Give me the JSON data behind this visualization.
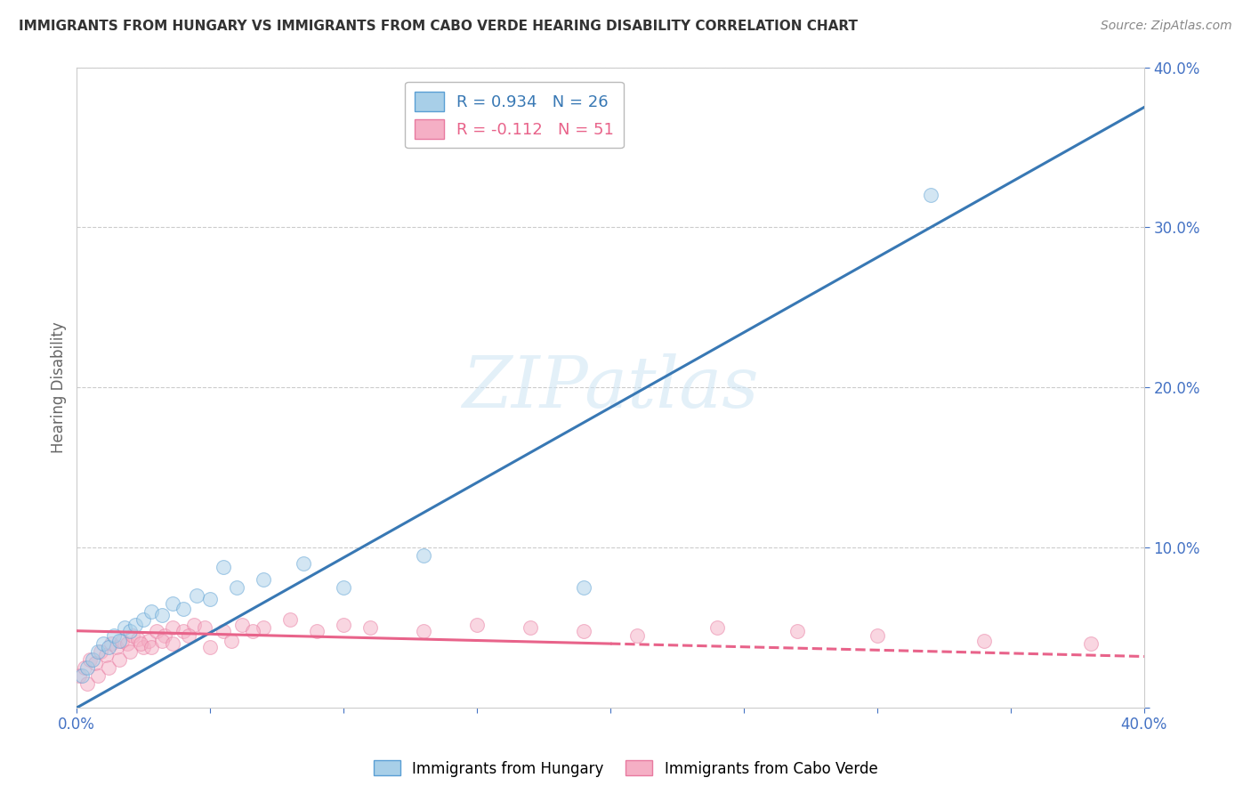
{
  "title": "IMMIGRANTS FROM HUNGARY VS IMMIGRANTS FROM CABO VERDE HEARING DISABILITY CORRELATION CHART",
  "source": "Source: ZipAtlas.com",
  "ylabel": "Hearing Disability",
  "xlim": [
    0.0,
    0.4
  ],
  "ylim": [
    0.0,
    0.4
  ],
  "xticks": [
    0.0,
    0.05,
    0.1,
    0.15,
    0.2,
    0.25,
    0.3,
    0.35,
    0.4
  ],
  "xtick_labels": [
    "0.0%",
    "",
    "",
    "",
    "",
    "",
    "",
    "",
    "40.0%"
  ],
  "yticks": [
    0.0,
    0.1,
    0.2,
    0.3,
    0.4
  ],
  "ytick_labels": [
    "",
    "10.0%",
    "20.0%",
    "30.0%",
    "40.0%"
  ],
  "blue_color": "#a8cfe8",
  "pink_color": "#f5afc5",
  "blue_edge_color": "#5a9fd4",
  "pink_edge_color": "#e87aa0",
  "blue_line_color": "#3878b4",
  "pink_line_color": "#e8638a",
  "background_color": "#ffffff",
  "watermark": "ZIPatlas",
  "blue_scatter_x": [
    0.002,
    0.004,
    0.006,
    0.008,
    0.01,
    0.012,
    0.014,
    0.016,
    0.018,
    0.02,
    0.022,
    0.025,
    0.028,
    0.032,
    0.036,
    0.04,
    0.045,
    0.05,
    0.06,
    0.07,
    0.085,
    0.1,
    0.13,
    0.19,
    0.32,
    0.055
  ],
  "blue_scatter_y": [
    0.02,
    0.025,
    0.03,
    0.035,
    0.04,
    0.038,
    0.045,
    0.042,
    0.05,
    0.048,
    0.052,
    0.055,
    0.06,
    0.058,
    0.065,
    0.062,
    0.07,
    0.068,
    0.075,
    0.08,
    0.09,
    0.075,
    0.095,
    0.075,
    0.32,
    0.088
  ],
  "pink_scatter_x": [
    0.001,
    0.003,
    0.005,
    0.007,
    0.009,
    0.011,
    0.013,
    0.015,
    0.017,
    0.019,
    0.021,
    0.023,
    0.025,
    0.027,
    0.03,
    0.033,
    0.036,
    0.04,
    0.044,
    0.048,
    0.055,
    0.062,
    0.07,
    0.08,
    0.09,
    0.1,
    0.11,
    0.13,
    0.15,
    0.17,
    0.19,
    0.21,
    0.24,
    0.27,
    0.3,
    0.34,
    0.38,
    0.004,
    0.008,
    0.012,
    0.016,
    0.02,
    0.024,
    0.028,
    0.032,
    0.036,
    0.042,
    0.05,
    0.058,
    0.066
  ],
  "pink_scatter_y": [
    0.02,
    0.025,
    0.03,
    0.028,
    0.035,
    0.033,
    0.04,
    0.038,
    0.042,
    0.04,
    0.045,
    0.043,
    0.038,
    0.042,
    0.048,
    0.045,
    0.05,
    0.048,
    0.052,
    0.05,
    0.048,
    0.052,
    0.05,
    0.055,
    0.048,
    0.052,
    0.05,
    0.048,
    0.052,
    0.05,
    0.048,
    0.045,
    0.05,
    0.048,
    0.045,
    0.042,
    0.04,
    0.015,
    0.02,
    0.025,
    0.03,
    0.035,
    0.04,
    0.038,
    0.042,
    0.04,
    0.045,
    0.038,
    0.042,
    0.048
  ],
  "blue_line_x": [
    0.0,
    0.4
  ],
  "blue_line_y": [
    0.0,
    0.375
  ],
  "pink_solid_line_x": [
    0.0,
    0.2
  ],
  "pink_solid_line_y": [
    0.048,
    0.04
  ],
  "pink_dashed_line_x": [
    0.2,
    0.4
  ],
  "pink_dashed_line_y": [
    0.04,
    0.032
  ],
  "grid_yticks": [
    0.1,
    0.2,
    0.3,
    0.4
  ],
  "grid_color": "#cccccc",
  "dot_size": 130,
  "dot_alpha": 0.5,
  "line_width": 2.2,
  "tick_color": "#4472c4",
  "title_fontsize": 11,
  "source_fontsize": 10,
  "axis_fontsize": 12
}
